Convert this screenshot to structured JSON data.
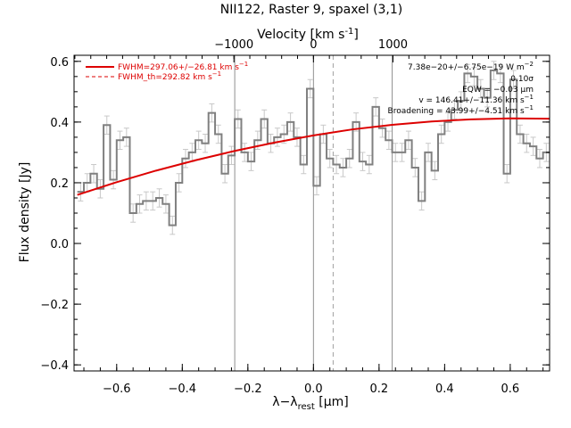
{
  "chart_data": {
    "type": "line",
    "title": "NII122, Raster 9, spaxel (3,1)",
    "xlabel": "λ−λ",
    "xlabel_sub": "rest",
    "xlabel_unit": " [μm]",
    "ylabel": "Flux density [Jy]",
    "top_xlabel": "Velocity [km s",
    "top_xlabel_sup": "-1",
    "top_xlabel_end": "]",
    "xlim": [
      -0.73,
      0.72
    ],
    "ylim": [
      -0.42,
      0.62
    ],
    "x_ticks": [
      -0.6,
      -0.4,
      -0.2,
      0.0,
      0.2,
      0.4,
      0.6
    ],
    "x_tick_labels": [
      "−0.6",
      "−0.4",
      "−0.2",
      "0.0",
      "0.2",
      "0.4",
      "0.6"
    ],
    "y_ticks": [
      -0.4,
      -0.2,
      0.0,
      0.2,
      0.4,
      0.6
    ],
    "y_tick_labels": [
      "−0.4",
      "−0.2",
      "0.0",
      "0.2",
      "0.4",
      "0.6"
    ],
    "top_ticks_um": [
      -0.2425,
      0.0,
      0.2425
    ],
    "top_tick_labels": [
      "−1000",
      "0",
      "1000"
    ],
    "vertical_lines": [
      -0.24,
      0.0,
      0.24
    ],
    "dashed_vertical_line": 0.06,
    "grid": false,
    "series": [
      {
        "name": "",
        "style": "step",
        "color": "#808080",
        "x": [
          -0.71,
          -0.69,
          -0.67,
          -0.65,
          -0.63,
          -0.61,
          -0.59,
          -0.57,
          -0.55,
          -0.53,
          -0.51,
          -0.49,
          -0.47,
          -0.45,
          -0.43,
          -0.41,
          -0.39,
          -0.37,
          -0.35,
          -0.33,
          -0.31,
          -0.29,
          -0.27,
          -0.25,
          -0.23,
          -0.21,
          -0.19,
          -0.17,
          -0.15,
          -0.13,
          -0.11,
          -0.09,
          -0.07,
          -0.05,
          -0.03,
          -0.01,
          0.01,
          0.03,
          0.05,
          0.07,
          0.09,
          0.11,
          0.13,
          0.15,
          0.17,
          0.19,
          0.21,
          0.23,
          0.25,
          0.27,
          0.29,
          0.31,
          0.33,
          0.35,
          0.37,
          0.39,
          0.41,
          0.43,
          0.45,
          0.47,
          0.49,
          0.51,
          0.53,
          0.55,
          0.57,
          0.59,
          0.61,
          0.63,
          0.65,
          0.67,
          0.69,
          0.71
        ],
        "y": [
          0.17,
          0.2,
          0.23,
          0.18,
          0.39,
          0.21,
          0.34,
          0.35,
          0.1,
          0.13,
          0.14,
          0.14,
          0.15,
          0.13,
          0.06,
          0.2,
          0.28,
          0.3,
          0.34,
          0.33,
          0.43,
          0.36,
          0.23,
          0.29,
          0.41,
          0.3,
          0.27,
          0.34,
          0.41,
          0.33,
          0.35,
          0.36,
          0.4,
          0.35,
          0.26,
          0.51,
          0.19,
          0.36,
          0.28,
          0.26,
          0.25,
          0.28,
          0.4,
          0.27,
          0.26,
          0.45,
          0.38,
          0.34,
          0.3,
          0.3,
          0.34,
          0.25,
          0.14,
          0.3,
          0.24,
          0.36,
          0.4,
          0.44,
          0.47,
          0.56,
          0.55,
          0.51,
          0.48,
          0.57,
          0.56,
          0.23,
          0.54,
          0.36,
          0.33,
          0.32,
          0.28,
          0.3
        ],
        "err": [
          0.03,
          0.03,
          0.03,
          0.03,
          0.03,
          0.03,
          0.03,
          0.03,
          0.03,
          0.03,
          0.03,
          0.03,
          0.03,
          0.03,
          0.03,
          0.03,
          0.03,
          0.03,
          0.03,
          0.03,
          0.03,
          0.03,
          0.03,
          0.03,
          0.03,
          0.03,
          0.03,
          0.03,
          0.03,
          0.03,
          0.03,
          0.03,
          0.03,
          0.03,
          0.03,
          0.03,
          0.03,
          0.03,
          0.03,
          0.03,
          0.03,
          0.03,
          0.03,
          0.03,
          0.03,
          0.03,
          0.03,
          0.03,
          0.03,
          0.03,
          0.03,
          0.03,
          0.03,
          0.03,
          0.03,
          0.03,
          0.03,
          0.03,
          0.03,
          0.03,
          0.03,
          0.03,
          0.03,
          0.03,
          0.03,
          0.03,
          0.03,
          0.03,
          0.03,
          0.03,
          0.03,
          0.03
        ]
      },
      {
        "name": "FWHM=297.06+/−26.81 km s⁻¹",
        "style": "curve",
        "color": "#dd0000",
        "x": [
          -0.72,
          -0.6,
          -0.48,
          -0.36,
          -0.24,
          -0.12,
          0.0,
          0.12,
          0.24,
          0.36,
          0.48,
          0.6,
          0.72
        ],
        "y": [
          0.16,
          0.202,
          0.24,
          0.274,
          0.305,
          0.332,
          0.356,
          0.376,
          0.391,
          0.402,
          0.409,
          0.412,
          0.411
        ]
      }
    ],
    "legend": {
      "placement": "top-left",
      "entries": [
        {
          "label": "FWHM=297.06+/−26.81 km s",
          "sup": "−1",
          "style": "solid"
        },
        {
          "label": "FWHM_th=292.82 km s",
          "sup": "−1",
          "style": "dashed"
        }
      ]
    },
    "annotations": [
      {
        "text": "7.38e−20+/−6.75e−19 W m",
        "sup": "−2"
      },
      {
        "text": "0.10σ",
        "sup": ""
      },
      {
        "text": "EQW = −0.03 μm",
        "sup": ""
      },
      {
        "text": "v = 146.41+/−11.36 km s",
        "sup": "−1"
      },
      {
        "text": "Broadening = 43.99+/−4.51 km s",
        "sup": "−1"
      }
    ]
  }
}
